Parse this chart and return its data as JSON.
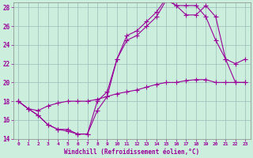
{
  "title": "",
  "xlabel": "Windchill (Refroidissement éolien,°C)",
  "ylabel": "",
  "bg_color": "#cceedd",
  "line_color": "#990099",
  "grid_color": "#99bbbb",
  "xlim": [
    -0.5,
    23.5
  ],
  "ylim": [
    14,
    28.5
  ],
  "xticks": [
    0,
    1,
    2,
    3,
    4,
    5,
    6,
    7,
    8,
    9,
    10,
    11,
    12,
    13,
    14,
    15,
    16,
    17,
    18,
    19,
    20,
    21,
    22,
    23
  ],
  "yticks": [
    14,
    16,
    18,
    20,
    22,
    24,
    26,
    28
  ],
  "line1_x": [
    0,
    1,
    2,
    3,
    4,
    5,
    6,
    7,
    8,
    9,
    10,
    11,
    12,
    13,
    14,
    15,
    16,
    17,
    18,
    19,
    20,
    21,
    22,
    23
  ],
  "line1_y": [
    18,
    17.2,
    17,
    17.5,
    17.8,
    18,
    18,
    18,
    18.2,
    18.5,
    18.8,
    19,
    19.2,
    19.5,
    19.8,
    20,
    20,
    20.2,
    20.3,
    20.3,
    20,
    20,
    20,
    20
  ],
  "line2_x": [
    0,
    1,
    2,
    3,
    4,
    5,
    6,
    7,
    8,
    9,
    10,
    11,
    12,
    13,
    14,
    15,
    16,
    17,
    18,
    19,
    20,
    21,
    22,
    23
  ],
  "line2_y": [
    18,
    17.2,
    16.5,
    15.5,
    15,
    15,
    14.5,
    14.5,
    17,
    18.5,
    22.5,
    24.5,
    25,
    26,
    27,
    28.8,
    28.2,
    28.2,
    28.2,
    27,
    24.5,
    22.5,
    22,
    22.5
  ],
  "line3_x": [
    0,
    1,
    2,
    3,
    4,
    5,
    6,
    7,
    8,
    9,
    10,
    11,
    12,
    13,
    14,
    15,
    16,
    17,
    18,
    19,
    20,
    21,
    22,
    23
  ],
  "line3_y": [
    18,
    17.2,
    16.5,
    15.5,
    15,
    14.8,
    14.5,
    14.5,
    18,
    19,
    22.5,
    25,
    25.5,
    26.5,
    27.5,
    29,
    28.2,
    27.2,
    27.2,
    28.2,
    27,
    22.5,
    20,
    20
  ]
}
